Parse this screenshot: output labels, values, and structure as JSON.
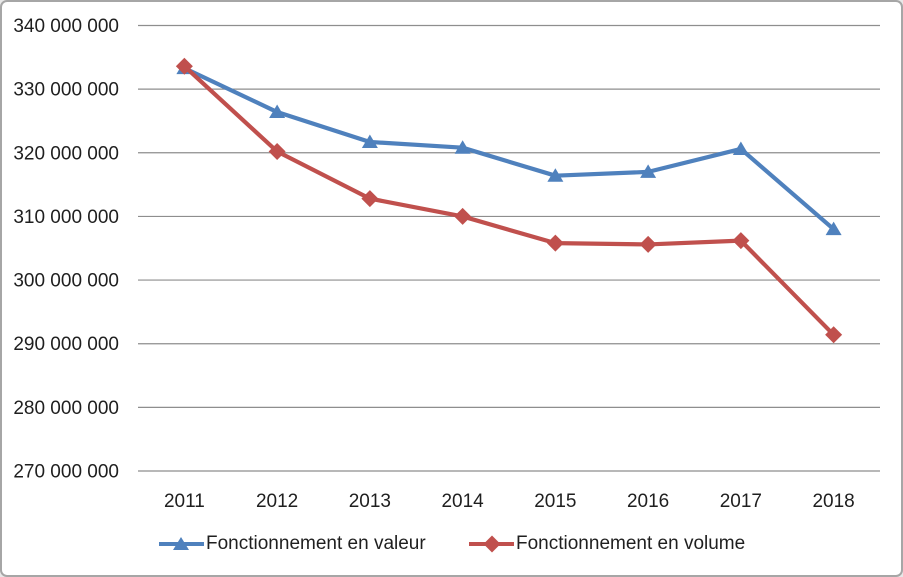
{
  "chart_data": {
    "type": "line",
    "title": "",
    "xlabel": "",
    "ylabel": "",
    "categories": [
      "2011",
      "2012",
      "2013",
      "2014",
      "2015",
      "2016",
      "2017",
      "2018"
    ],
    "series": [
      {
        "name": "Fonctionnement en valeur",
        "color": "#4f81bd",
        "marker": "triangle",
        "values": [
          333300000,
          326400000,
          321700000,
          320800000,
          316400000,
          317000000,
          320600000,
          308000000
        ]
      },
      {
        "name": "Fonctionnement en volume",
        "color": "#c0504d",
        "marker": "diamond",
        "values": [
          333600000,
          320200000,
          312800000,
          310000000,
          305800000,
          305600000,
          306200000,
          291400000
        ]
      }
    ],
    "y_axis": {
      "min": 270000000,
      "max": 340000000,
      "step": 10000000,
      "tick_labels": [
        "270 000 000",
        "280 000 000",
        "290 000 000",
        "300 000 000",
        "310 000 000",
        "320 000 000",
        "330 000 000",
        "340 000 000"
      ]
    },
    "legend_position": "bottom",
    "gridlines": true
  },
  "colors": {
    "series_blue": "#4f81bd",
    "series_red": "#c0504d",
    "gridline": "#8e8e8e",
    "axis_text": "#1f1f1f",
    "frame_border": "#a6a6a6",
    "background": "#ffffff"
  }
}
